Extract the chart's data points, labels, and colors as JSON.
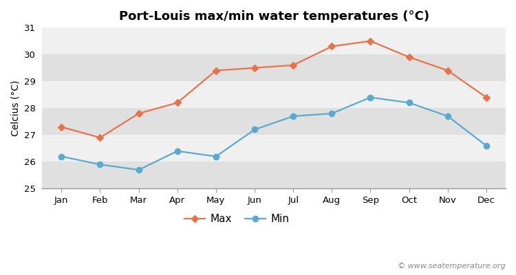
{
  "title": "Port-Louis max/min water temperatures (°C)",
  "ylabel": "Celcius (°C)",
  "months": [
    "Jan",
    "Feb",
    "Mar",
    "Apr",
    "May",
    "Jun",
    "Jul",
    "Aug",
    "Sep",
    "Oct",
    "Nov",
    "Dec"
  ],
  "max_temps": [
    27.3,
    26.9,
    27.8,
    28.2,
    29.4,
    29.5,
    29.6,
    30.3,
    30.5,
    29.9,
    29.4,
    28.4
  ],
  "min_temps": [
    26.2,
    25.9,
    25.7,
    26.4,
    26.2,
    27.2,
    27.7,
    27.8,
    28.4,
    28.2,
    27.7,
    26.6
  ],
  "max_color": "#e8724a",
  "min_color": "#5aaad0",
  "figure_bg": "#ffffff",
  "band_light": "#f0f0f0",
  "band_dark": "#e0e0e0",
  "ylim": [
    25,
    31
  ],
  "yticks": [
    25,
    26,
    27,
    28,
    29,
    30,
    31
  ],
  "watermark": "© www.seatemperature.org",
  "legend_max": "Max",
  "legend_min": "Min",
  "title_fontsize": 13,
  "label_fontsize": 10,
  "tick_fontsize": 9.5,
  "watermark_fontsize": 8
}
